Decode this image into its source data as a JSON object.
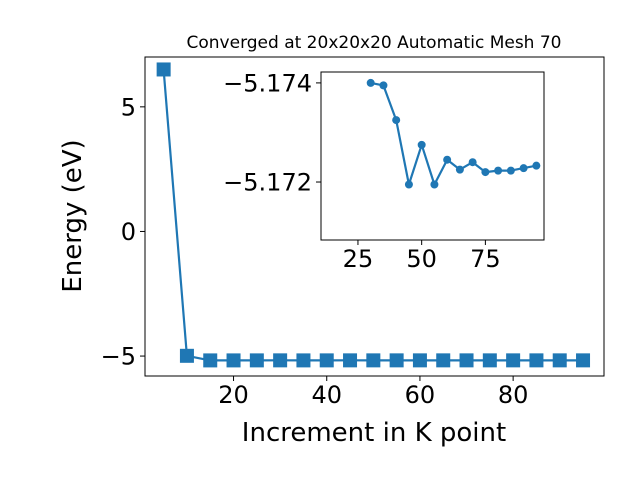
{
  "chart_data": [
    {
      "type": "line",
      "title": "Converged at 20x20x20 Automatic Mesh 70",
      "xlabel": "Increment in K point",
      "ylabel": "Energy (eV)",
      "xlim": [
        1,
        99.5
      ],
      "ylim": [
        -5.8,
        7.0
      ],
      "xticks": [
        20,
        40,
        60,
        80
      ],
      "yticks": [
        5,
        0,
        -5
      ],
      "ytick_labels": [
        "5",
        "0",
        "−5"
      ],
      "marker": "square",
      "color": "#1f77b4",
      "grid": false,
      "series": [
        {
          "x": [
            5,
            10,
            15,
            20,
            25,
            30,
            35,
            40,
            45,
            50,
            55,
            60,
            65,
            70,
            75,
            80,
            85,
            90,
            95
          ],
          "values": [
            6.5,
            -4.99,
            -5.174,
            -5.1738,
            -5.1731,
            -5.172,
            -5.1735,
            -5.1727,
            -5.172,
            -5.17242,
            -5.1722,
            -5.17222,
            -5.17219,
            -5.17221,
            -5.17218,
            -5.17218,
            -5.17218,
            -5.17217,
            -5.17216
          ]
        }
      ]
    },
    {
      "type": "line",
      "title": "",
      "xlabel": "",
      "ylabel": "",
      "xlim": [
        10.5,
        98
      ],
      "ylim": [
        -5.17083,
        -5.17422
      ],
      "xticks": [
        25,
        50,
        75
      ],
      "yticks": [
        -5.174,
        -5.172
      ],
      "ytick_labels": [
        "−5.174",
        "−5.172"
      ],
      "marker": "circle",
      "color": "#1f77b4",
      "grid": false,
      "series": [
        {
          "x": [
            30,
            35,
            40,
            45,
            50,
            55,
            60,
            65,
            70,
            75,
            80,
            85,
            90,
            95
          ],
          "values": [
            -5.174,
            -5.17395,
            -5.17325,
            -5.17195,
            -5.17275,
            -5.17195,
            -5.17245,
            -5.17225,
            -5.1724,
            -5.1722,
            -5.17223,
            -5.17223,
            -5.17228,
            -5.17233
          ]
        }
      ]
    }
  ]
}
